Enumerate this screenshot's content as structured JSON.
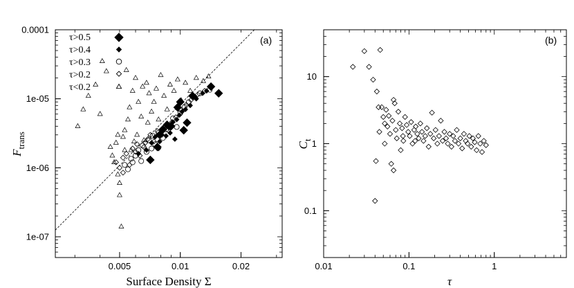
{
  "chart_data": [
    {
      "type": "scatter",
      "panel_label": "(a)",
      "xlabel": "Surface Density Σ",
      "ylabel_main": "F",
      "ylabel_sub": "trans",
      "x_scale": "log",
      "y_scale": "log",
      "xlim": [
        0.0024,
        0.032
      ],
      "ylim": [
        5e-08,
        0.0001
      ],
      "x_ticks": [
        {
          "value": 0.005,
          "label": "0.005"
        },
        {
          "value": 0.01,
          "label": "0.01"
        },
        {
          "value": 0.02,
          "label": "0.02"
        }
      ],
      "y_ticks": [
        {
          "value": 1e-07,
          "label": "1e-07"
        },
        {
          "value": 1e-06,
          "label": "1e-06"
        },
        {
          "value": 1e-05,
          "label": "1e-05"
        },
        {
          "value": 0.0001,
          "label": "0.0001"
        }
      ],
      "legend_position": "top-left",
      "series": [
        {
          "name": "τ>0.5",
          "marker": "diamond-filled",
          "points": [
            [
              0.0071,
              1.3e-06
            ],
            [
              0.0077,
              2e-06
            ],
            [
              0.0079,
              3e-06
            ],
            [
              0.0082,
              3.6e-06
            ],
            [
              0.0086,
              4.2e-06
            ],
            [
              0.009,
              4e-06
            ],
            [
              0.0097,
              7.5e-06
            ],
            [
              0.01,
              9e-06
            ],
            [
              0.0104,
              3.5e-06
            ],
            [
              0.0108,
              4.5e-06
            ],
            [
              0.0115,
              1.1e-05
            ],
            [
              0.0142,
              1.5e-05
            ],
            [
              0.0155,
              1.2e-05
            ]
          ]
        },
        {
          "name": "τ>0.4",
          "marker": "diamond-small-filled",
          "points": [
            [
              0.0062,
              1.6e-06
            ],
            [
              0.0068,
              1.8e-06
            ],
            [
              0.0072,
              2.3e-06
            ],
            [
              0.0075,
              2.8e-06
            ],
            [
              0.0079,
              2.4e-06
            ],
            [
              0.0081,
              3.3e-06
            ],
            [
              0.0085,
              2.9e-06
            ],
            [
              0.0089,
              3.2e-06
            ],
            [
              0.0092,
              4.6e-06
            ],
            [
              0.0094,
              2.6e-06
            ],
            [
              0.0096,
              5e-06
            ],
            [
              0.0099,
              5.8e-06
            ],
            [
              0.0102,
              6.5e-06
            ],
            [
              0.0106,
              7e-06
            ],
            [
              0.0112,
              8e-06
            ],
            [
              0.012,
              1e-05
            ],
            [
              0.0129,
              1.2e-05
            ],
            [
              0.0135,
              1.3e-05
            ],
            [
              0.0078,
              1.9e-06
            ],
            [
              0.0088,
              3.8e-06
            ]
          ]
        },
        {
          "name": "τ>0.3",
          "marker": "circle-open",
          "points": [
            [
              0.0053,
              1.1e-06
            ],
            [
              0.0055,
              9.5e-07
            ],
            [
              0.0058,
              1.2e-06
            ],
            [
              0.006,
              1.5e-06
            ],
            [
              0.0062,
              1.8e-06
            ],
            [
              0.0065,
              2.1e-06
            ],
            [
              0.0068,
              1.7e-06
            ],
            [
              0.007,
              2.5e-06
            ],
            [
              0.0073,
              2.9e-06
            ],
            [
              0.0075,
              2.2e-06
            ],
            [
              0.0078,
              3.2e-06
            ],
            [
              0.0082,
              2.7e-06
            ],
            [
              0.0085,
              3.6e-06
            ],
            [
              0.0088,
              4.1e-06
            ],
            [
              0.0092,
              5.2e-06
            ],
            [
              0.0096,
              3.9e-06
            ],
            [
              0.01,
              6.2e-06
            ],
            [
              0.0105,
              7.6e-06
            ],
            [
              0.011,
              8.9e-06
            ],
            [
              0.0118,
              1.05e-05
            ],
            [
              0.0125,
              1.2e-05
            ],
            [
              0.014,
              1.35e-05
            ],
            [
              0.0057,
              1.35e-06
            ],
            [
              0.0064,
              1.25e-06
            ],
            [
              0.0072,
              1.9e-06
            ]
          ]
        },
        {
          "name": "τ>0.2",
          "marker": "diamond-open",
          "points": [
            [
              0.0048,
              1.2e-06
            ],
            [
              0.005,
              1e-06
            ],
            [
              0.0052,
              1.4e-06
            ],
            [
              0.0054,
              1.6e-06
            ],
            [
              0.0056,
              1.1e-06
            ],
            [
              0.0058,
              1.9e-06
            ],
            [
              0.0061,
              2.2e-06
            ],
            [
              0.0063,
              1.5e-06
            ],
            [
              0.0066,
              2e-06
            ],
            [
              0.0069,
              2.6e-06
            ],
            [
              0.0071,
              3e-06
            ],
            [
              0.0074,
              2.4e-06
            ],
            [
              0.0077,
              3.4e-06
            ],
            [
              0.0081,
              3e-06
            ],
            [
              0.0084,
              4e-06
            ],
            [
              0.0087,
              3.5e-06
            ],
            [
              0.0091,
              4.6e-06
            ],
            [
              0.0095,
              5.4e-06
            ],
            [
              0.0101,
              6.8e-06
            ],
            [
              0.0107,
              8.2e-06
            ],
            [
              0.0113,
              9.6e-06
            ],
            [
              0.0122,
              1.15e-05
            ],
            [
              0.0132,
              1.3e-05
            ],
            [
              0.0052,
              8.5e-07
            ],
            [
              0.006,
              1.7e-06
            ],
            [
              0.0067,
              2.3e-06
            ]
          ]
        },
        {
          "name": "τ<0.2",
          "marker": "triangle-open",
          "points": [
            [
              0.0031,
              4e-06
            ],
            [
              0.0033,
              7e-06
            ],
            [
              0.0035,
              1.1e-05
            ],
            [
              0.0038,
              1.6e-05
            ],
            [
              0.004,
              6e-06
            ],
            [
              0.0041,
              3.5e-05
            ],
            [
              0.0043,
              2.5e-05
            ],
            [
              0.0045,
              2e-06
            ],
            [
              0.0046,
              1.5e-06
            ],
            [
              0.0047,
              1.2e-06
            ],
            [
              0.0048,
              2.3e-06
            ],
            [
              0.0049,
              8e-07
            ],
            [
              0.005,
              6e-07
            ],
            [
              0.005,
              4e-07
            ],
            [
              0.0051,
              1.4e-07
            ],
            [
              0.0052,
              2.8e-06
            ],
            [
              0.0053,
              3.5e-06
            ],
            [
              0.0054,
              2.6e-05
            ],
            [
              0.0055,
              5e-06
            ],
            [
              0.0056,
              7.5e-06
            ],
            [
              0.0057,
              1.8e-06
            ],
            [
              0.0058,
              1.3e-05
            ],
            [
              0.006,
              2e-05
            ],
            [
              0.0061,
              3e-06
            ],
            [
              0.0062,
              9e-06
            ],
            [
              0.0064,
              5.5e-06
            ],
            [
              0.0065,
              1.5e-05
            ],
            [
              0.0066,
              2.5e-06
            ],
            [
              0.0068,
              1.7e-05
            ],
            [
              0.0069,
              4.5e-06
            ],
            [
              0.007,
              1.2e-05
            ],
            [
              0.0072,
              6.5e-06
            ],
            [
              0.0074,
              9e-06
            ],
            [
              0.0076,
              1.4e-05
            ],
            [
              0.0078,
              5e-06
            ],
            [
              0.008,
              2.2e-05
            ],
            [
              0.0083,
              1.1e-05
            ],
            [
              0.0086,
              7e-06
            ],
            [
              0.0089,
              1.6e-05
            ],
            [
              0.0093,
              1.3e-05
            ],
            [
              0.0097,
              1.9e-05
            ],
            [
              0.0101,
              9.5e-06
            ],
            [
              0.0106,
              1.7e-05
            ],
            [
              0.0112,
              1.3e-05
            ],
            [
              0.012,
              2e-05
            ],
            [
              0.013,
              1.8e-05
            ],
            [
              0.0138,
              2.1e-05
            ],
            [
              0.0049,
              3e-06
            ],
            [
              0.0053,
              1.8e-06
            ],
            [
              0.0059,
              2.4e-06
            ]
          ]
        }
      ],
      "reference_line": {
        "style": "dashed",
        "points": [
          [
            0.0024,
            1.25e-07
          ],
          [
            0.0233,
            0.0001
          ]
        ]
      }
    },
    {
      "type": "scatter",
      "panel_label": "(b)",
      "xlabel": "τ",
      "ylabel_main": "C",
      "ylabel_sub": "t",
      "x_scale": "log",
      "y_scale": "log",
      "xlim": [
        0.01,
        7
      ],
      "ylim": [
        0.02,
        50
      ],
      "x_ticks": [
        {
          "value": 0.01,
          "label": "0.01"
        },
        {
          "value": 0.1,
          "label": "0.1"
        },
        {
          "value": 1,
          "label": "1"
        }
      ],
      "y_ticks": [
        {
          "value": 0.1,
          "label": "0.1"
        },
        {
          "value": 1,
          "label": "1"
        },
        {
          "value": 10,
          "label": "10"
        }
      ],
      "series": [
        {
          "marker": "diamond-open",
          "points": [
            [
              0.022,
              14
            ],
            [
              0.03,
              24
            ],
            [
              0.034,
              14
            ],
            [
              0.038,
              9
            ],
            [
              0.04,
              0.14
            ],
            [
              0.041,
              0.55
            ],
            [
              0.042,
              6
            ],
            [
              0.044,
              3.5
            ],
            [
              0.045,
              1.5
            ],
            [
              0.046,
              25
            ],
            [
              0.048,
              3.5
            ],
            [
              0.05,
              2.5
            ],
            [
              0.052,
              2.0
            ],
            [
              0.054,
              3.2
            ],
            [
              0.056,
              1.8
            ],
            [
              0.058,
              2.6
            ],
            [
              0.06,
              1.4
            ],
            [
              0.062,
              0.5
            ],
            [
              0.064,
              2.2
            ],
            [
              0.066,
              4.5
            ],
            [
              0.068,
              4.0
            ],
            [
              0.07,
              1.6
            ],
            [
              0.072,
              1.2
            ],
            [
              0.075,
              3.0
            ],
            [
              0.078,
              2.0
            ],
            [
              0.08,
              0.8
            ],
            [
              0.083,
              1.7
            ],
            [
              0.086,
              1.1
            ],
            [
              0.09,
              2.5
            ],
            [
              0.094,
              1.9
            ],
            [
              0.098,
              1.5
            ],
            [
              0.102,
              1.3
            ],
            [
              0.106,
              2.1
            ],
            [
              0.11,
              1.0
            ],
            [
              0.115,
              1.6
            ],
            [
              0.12,
              1.8
            ],
            [
              0.125,
              1.4
            ],
            [
              0.13,
              1.2
            ],
            [
              0.136,
              2.0
            ],
            [
              0.142,
              1.5
            ],
            [
              0.148,
              1.1
            ],
            [
              0.155,
              1.3
            ],
            [
              0.162,
              1.7
            ],
            [
              0.17,
              0.9
            ],
            [
              0.178,
              1.4
            ],
            [
              0.186,
              2.9
            ],
            [
              0.195,
              1.2
            ],
            [
              0.205,
              1.6
            ],
            [
              0.215,
              1.0
            ],
            [
              0.225,
              1.3
            ],
            [
              0.236,
              2.2
            ],
            [
              0.248,
              1.1
            ],
            [
              0.26,
              1.5
            ],
            [
              0.272,
              1.2
            ],
            [
              0.285,
              1.0
            ],
            [
              0.3,
              1.4
            ],
            [
              0.315,
              0.9
            ],
            [
              0.33,
              1.3
            ],
            [
              0.346,
              1.1
            ],
            [
              0.363,
              1.6
            ],
            [
              0.381,
              1.0
            ],
            [
              0.4,
              1.2
            ],
            [
              0.42,
              0.85
            ],
            [
              0.441,
              1.4
            ],
            [
              0.463,
              1.1
            ],
            [
              0.486,
              1.0
            ],
            [
              0.51,
              1.3
            ],
            [
              0.536,
              0.9
            ],
            [
              0.562,
              1.2
            ],
            [
              0.59,
              1.05
            ],
            [
              0.62,
              0.8
            ],
            [
              0.651,
              1.3
            ],
            [
              0.684,
              1.0
            ],
            [
              0.718,
              0.75
            ],
            [
              0.754,
              1.1
            ],
            [
              0.8,
              0.95
            ],
            [
              0.052,
              1.0
            ],
            [
              0.066,
              0.4
            ],
            [
              0.085,
              1.3
            ],
            [
              0.118,
              1.1
            ]
          ]
        }
      ]
    }
  ],
  "legend": [
    {
      "label": "τ>0.5"
    },
    {
      "label": "τ>0.4"
    },
    {
      "label": "τ>0.3"
    },
    {
      "label": "τ>0.2"
    },
    {
      "label": "τ<0.2"
    }
  ]
}
